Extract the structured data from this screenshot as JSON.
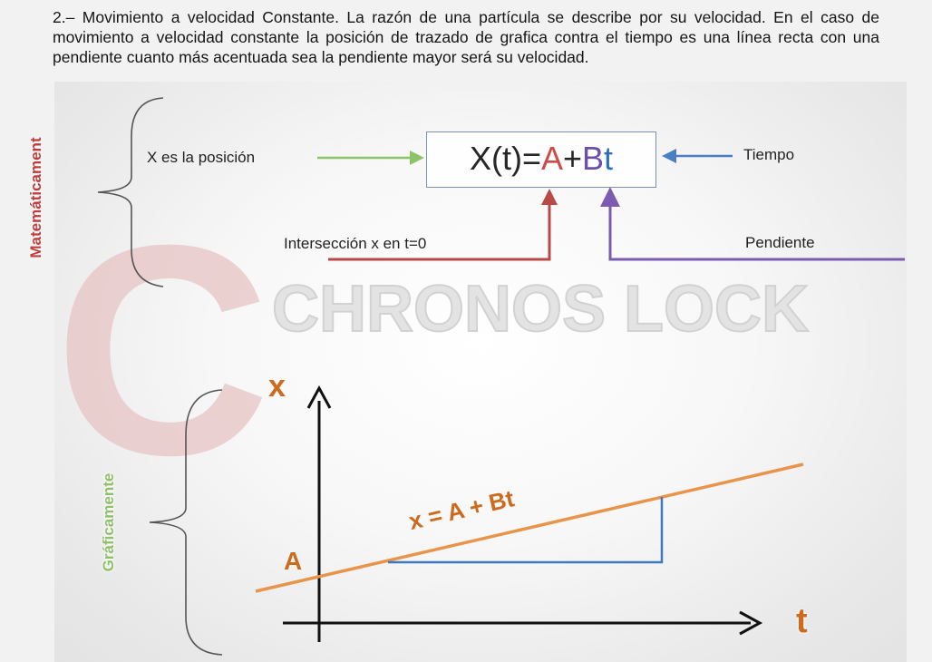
{
  "intro": {
    "text": "2.– Movimiento a velocidad Constante. La razón de una partícula se describe por su velocidad. En el caso de movimiento a velocidad constante la posición de trazado de grafica contra el tiempo es una línea recta con una pendiente cuanto más acentuada sea la pendiente mayor será su velocidad."
  },
  "math_section": {
    "side_label": "Matemáticament",
    "position_label": "X es la posición",
    "time_label": "Tiempo",
    "intercept_label": "Intersección x en t=0",
    "slope_label": "Pendiente",
    "formula": {
      "lhs": "X(t)=",
      "a": "A",
      "plus": "+",
      "b": "B",
      "t": "t"
    }
  },
  "graph_section": {
    "side_label": "Gráficamente",
    "x_axis_label": "t",
    "y_axis_label": "x",
    "intercept_label": "A",
    "line_equation": "x = A + Bt"
  },
  "watermark": {
    "text": "CHRONOS LOCK",
    "initial": "C"
  },
  "colors": {
    "intercept_red": "#b94848",
    "slope_purple": "#7b5cb0",
    "position_green": "#8cc468",
    "time_blue": "#4a7fc4",
    "graph_orange": "#e8944a",
    "graph_blue": "#3e78c0",
    "label_orange": "#cc6a1e",
    "side_red": "#c43a3a",
    "side_green": "#8dc16a"
  }
}
